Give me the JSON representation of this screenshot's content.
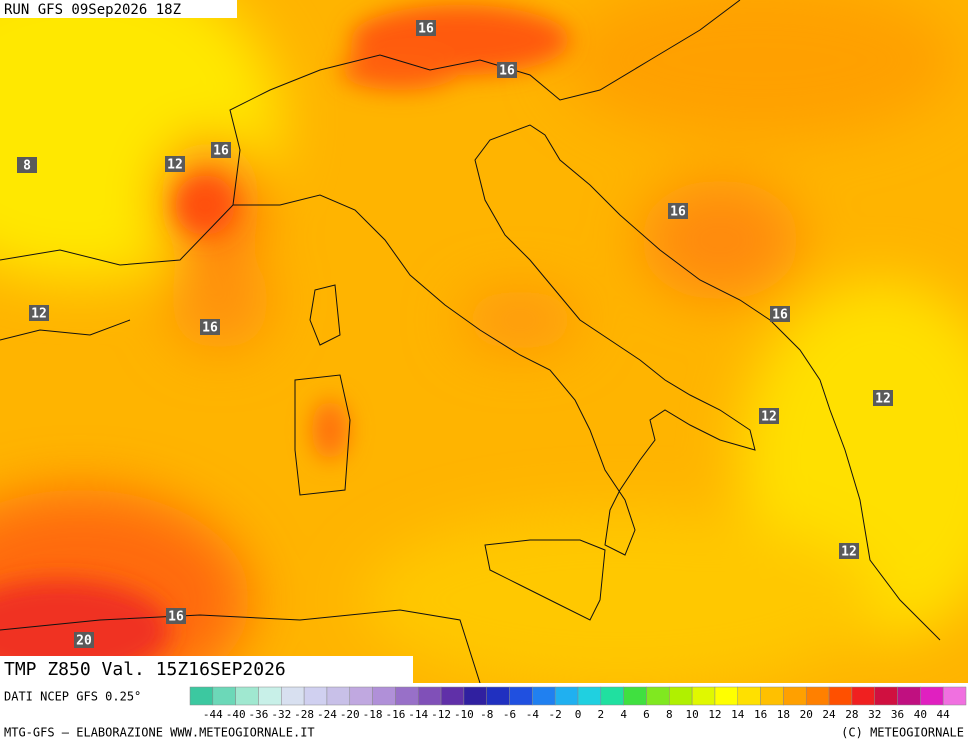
{
  "header": {
    "run": "RUN GFS 09Sep2026 18Z"
  },
  "map": {
    "labels": [
      "16",
      "16",
      "12",
      "16",
      "8",
      "16",
      "12",
      "16",
      "16",
      "12",
      "12",
      "12",
      "16",
      "20"
    ]
  },
  "info": {
    "title": "TMP Z850 Val. 15Z16SEP2026"
  },
  "legend": {
    "source": "DATI NCEP GFS 0.25°",
    "ticks": [
      -44,
      -40,
      -36,
      -32,
      -28,
      -24,
      -20,
      -18,
      -16,
      -14,
      -12,
      -10,
      -8,
      -6,
      -4,
      -2,
      0,
      2,
      4,
      6,
      8,
      10,
      12,
      14,
      16,
      18,
      20,
      24,
      28,
      32,
      36,
      40,
      44
    ],
    "colors": [
      "#3cc8a0",
      "#6cd8b8",
      "#a0e8d0",
      "#c8f0e8",
      "#d8e0f0",
      "#d0d0f0",
      "#c8c0e8",
      "#c0a8e0",
      "#b090d8",
      "#9870c8",
      "#8050b8",
      "#6030a8",
      "#3020a0",
      "#2030c0",
      "#2050e0",
      "#2080f0",
      "#20b0f0",
      "#20d0e0",
      "#20e0a0",
      "#40e040",
      "#80e820",
      "#b0f000",
      "#e0f800",
      "#ffff00",
      "#ffe000",
      "#ffc000",
      "#ffa000",
      "#ff8000",
      "#ff5000",
      "#f02020",
      "#d01040",
      "#c01080",
      "#e020c0",
      "#f070e0"
    ]
  },
  "footer": {
    "left": "MTG-GFS — ELABORAZIONE WWW.METEOGIORNALE.IT",
    "right": "(C) METEOGIORNALE"
  }
}
